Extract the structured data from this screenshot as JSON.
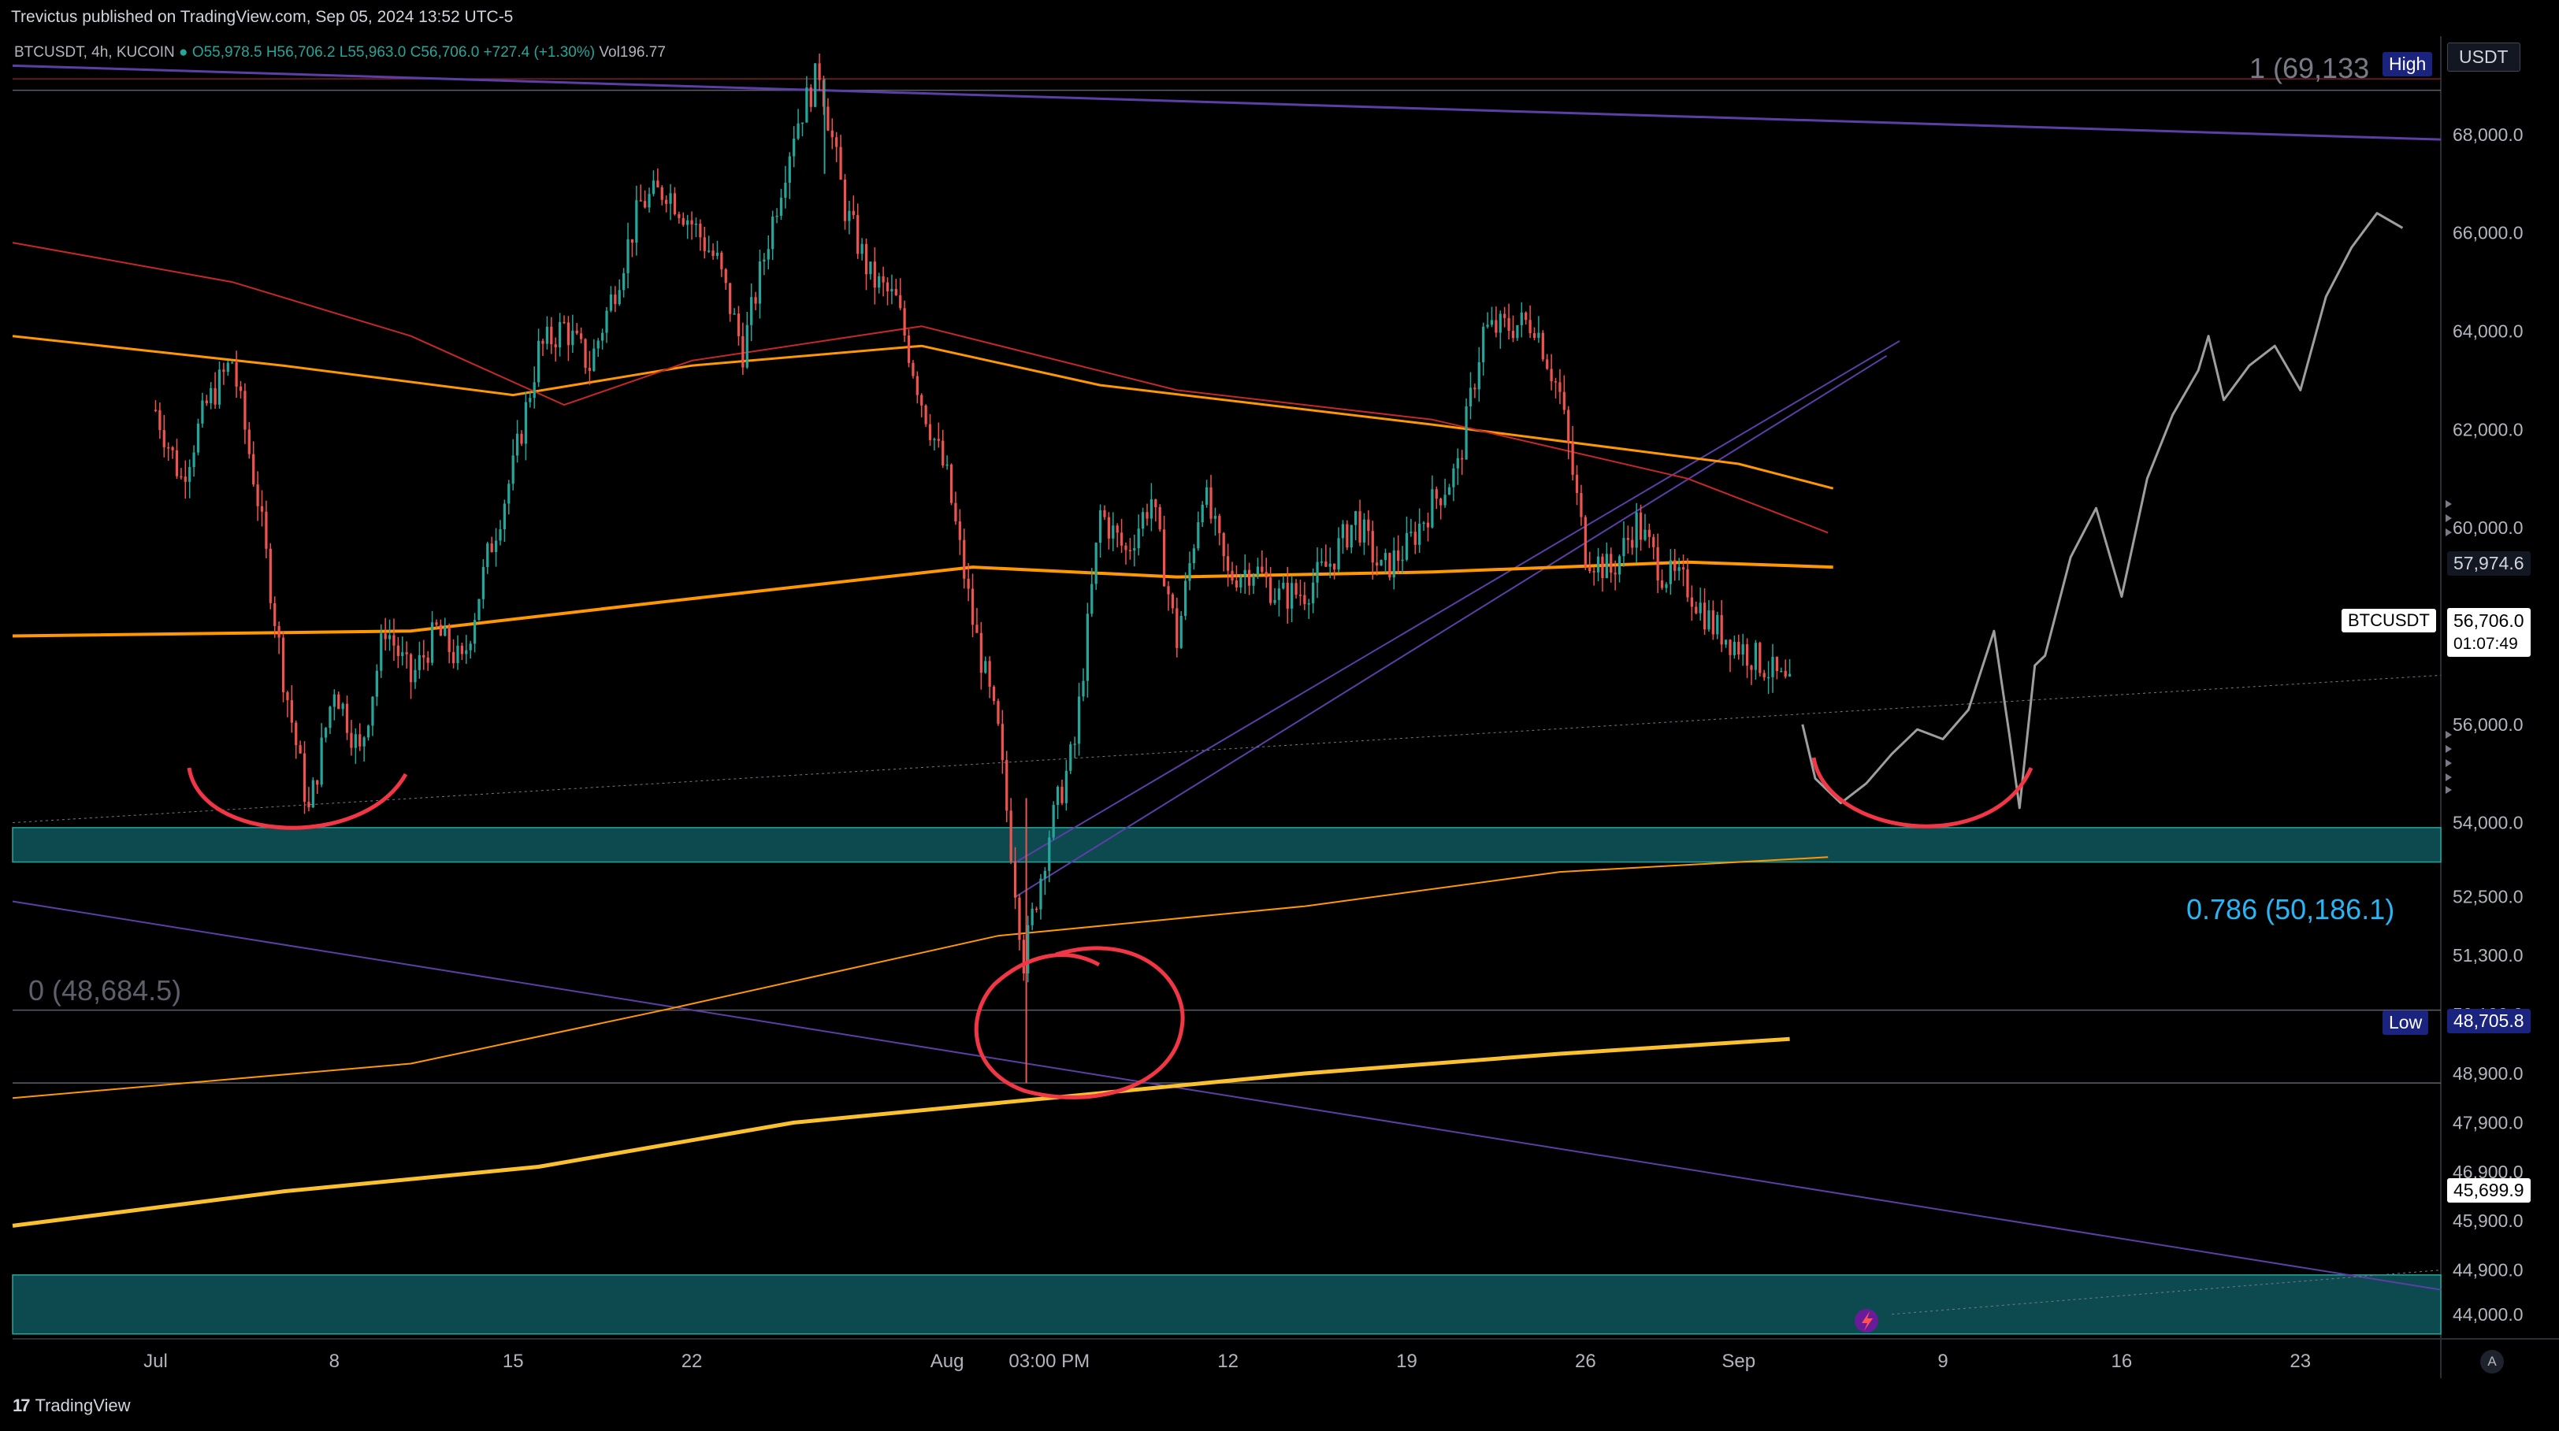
{
  "header": {
    "published_by": "Trevictus published on TradingView.com, Sep 05, 2024 13:52 UTC-5"
  },
  "legend": {
    "symbol": "BTCUSDT, 4h, KUCOIN",
    "ohlc": "O55,978.5 H56,706.2 L55,963.0 C56,706.0 +727.4 (+1.30%)",
    "volume": "Vol196.77"
  },
  "currency": "USDT",
  "footer": {
    "logo": "TradingView"
  },
  "auto_label": "A",
  "fib_labels": {
    "top": "1 (69,133",
    "mid": "0.786 (50,186.1)",
    "bottom": "0 (48,684.5)"
  },
  "badges": {
    "high": "High",
    "low": "Low",
    "low_value": "48,705.8",
    "symbol": "BTCUSDT",
    "price": "56,706.0",
    "countdown": "01:07:49",
    "level_1": "57,974.6",
    "level_2": "45,699.9"
  },
  "colors": {
    "background": "#000000",
    "up": "#26a69a",
    "down": "#ef5350",
    "zone": "#0d4a4f",
    "zone_border": "#26a69a",
    "trendline": "#5b3fa6",
    "ma_orange": "#ff9800",
    "ma_red": "#c62828",
    "ma_yellow": "#fbc02d",
    "annotation": "#f23645",
    "projection": "#9e9e9e",
    "fib_text": "#29b6f6"
  },
  "chart_data": {
    "type": "candlestick",
    "symbol": "BTCUSDT",
    "interval": "4h",
    "exchange": "KUCOIN",
    "ylim": [
      43500,
      70000
    ],
    "y_ticks": [
      44000,
      44900,
      45900,
      46900,
      47900,
      48900,
      50100,
      51300,
      52500,
      54000,
      56000,
      58000,
      60000,
      62000,
      64000,
      66000,
      68000
    ],
    "y_tick_labels": [
      "44,000.0",
      "44,900.0",
      "45,900.0",
      "46,900.0",
      "47,900.0",
      "48,900.0",
      "50,100.0",
      "51,300.0",
      "52,500.0",
      "54,000.0",
      "56,000.0",
      "58,000.0",
      "60,000.0",
      "62,000.0",
      "64,000.0",
      "66,000.0",
      "68,000.0"
    ],
    "x_ticks": [
      "Jul",
      "8",
      "15",
      "22",
      "Aug",
      "03:00 PM",
      "12",
      "19",
      "26",
      "Sep",
      "9",
      "16",
      "23"
    ],
    "x_tick_days": [
      0,
      7,
      14,
      21,
      31,
      35,
      42,
      49,
      56,
      62,
      70,
      77,
      84
    ],
    "x_range_days": [
      -5.6,
      89.5
    ],
    "close_path": [
      [
        0,
        62400
      ],
      [
        1,
        61000
      ],
      [
        2,
        62500
      ],
      [
        3,
        63400
      ],
      [
        4,
        60600
      ],
      [
        5,
        57000
      ],
      [
        6,
        54200
      ],
      [
        7,
        56800
      ],
      [
        8,
        55400
      ],
      [
        9,
        58000
      ],
      [
        10,
        56900
      ],
      [
        11,
        57900
      ],
      [
        12,
        57200
      ],
      [
        13,
        59400
      ],
      [
        14,
        61200
      ],
      [
        15,
        63600
      ],
      [
        16,
        64100
      ],
      [
        17,
        63300
      ],
      [
        18,
        64900
      ],
      [
        19,
        66600
      ],
      [
        20,
        66900
      ],
      [
        21,
        66200
      ],
      [
        22,
        65400
      ],
      [
        23,
        63600
      ],
      [
        24,
        65900
      ],
      [
        25,
        68100
      ],
      [
        26,
        69300
      ],
      [
        27,
        66500
      ],
      [
        28,
        65100
      ],
      [
        29,
        64600
      ],
      [
        30,
        62600
      ],
      [
        31,
        61000
      ],
      [
        32,
        58100
      ],
      [
        33,
        55800
      ],
      [
        34,
        51200
      ],
      [
        35,
        53800
      ],
      [
        36,
        55600
      ],
      [
        37,
        60300
      ],
      [
        38,
        59500
      ],
      [
        39,
        60600
      ],
      [
        40,
        57700
      ],
      [
        41,
        60800
      ],
      [
        42,
        59000
      ],
      [
        43,
        59200
      ],
      [
        44,
        58600
      ],
      [
        45,
        58700
      ],
      [
        46,
        59300
      ],
      [
        47,
        60200
      ],
      [
        48,
        59100
      ],
      [
        49,
        59600
      ],
      [
        50,
        60500
      ],
      [
        51,
        61200
      ],
      [
        52,
        64000
      ],
      [
        53,
        64100
      ],
      [
        54,
        64200
      ],
      [
        55,
        62700
      ],
      [
        56,
        59500
      ],
      [
        57,
        59100
      ],
      [
        58,
        60100
      ],
      [
        59,
        59100
      ],
      [
        60,
        58800
      ],
      [
        61,
        58000
      ],
      [
        62,
        57600
      ],
      [
        63,
        57200
      ],
      [
        64,
        56700
      ]
    ],
    "projection_path": [
      [
        64.5,
        56000
      ],
      [
        65,
        54900
      ],
      [
        66,
        54400
      ],
      [
        67,
        54800
      ],
      [
        68,
        55400
      ],
      [
        69,
        55900
      ],
      [
        70,
        55700
      ],
      [
        71,
        56300
      ],
      [
        72,
        57900
      ],
      [
        72.6,
        55800
      ],
      [
        73,
        54300
      ],
      [
        73.6,
        57200
      ],
      [
        74,
        57400
      ],
      [
        75,
        59400
      ],
      [
        76,
        60400
      ],
      [
        77,
        58600
      ],
      [
        78,
        61000
      ],
      [
        79,
        62300
      ],
      [
        80,
        63200
      ],
      [
        80.4,
        63900
      ],
      [
        81,
        62600
      ],
      [
        82,
        63300
      ],
      [
        83,
        63700
      ],
      [
        84,
        62800
      ],
      [
        85,
        64700
      ],
      [
        86,
        65700
      ],
      [
        87,
        66400
      ],
      [
        88,
        66100
      ]
    ],
    "moving_averages": [
      {
        "color": "#ff9800",
        "width": 3,
        "points": [
          [
            -5.6,
            63900
          ],
          [
            5,
            63300
          ],
          [
            14,
            62700
          ],
          [
            21,
            63300
          ],
          [
            30,
            63700
          ],
          [
            37,
            62900
          ],
          [
            50,
            62100
          ],
          [
            62,
            61300
          ],
          [
            65.7,
            60800
          ]
        ]
      },
      {
        "color": "#c62828",
        "width": 2,
        "points": [
          [
            -5.6,
            65800
          ],
          [
            3,
            65000
          ],
          [
            10,
            63900
          ],
          [
            16,
            62500
          ],
          [
            21,
            63400
          ],
          [
            30,
            64100
          ],
          [
            40,
            62800
          ],
          [
            50,
            62200
          ],
          [
            60,
            61000
          ],
          [
            65.5,
            59900
          ]
        ]
      },
      {
        "color": "#ff9800",
        "width": 4,
        "points": [
          [
            -5.6,
            57800
          ],
          [
            10,
            57900
          ],
          [
            20,
            58500
          ],
          [
            32,
            59200
          ],
          [
            40,
            59000
          ],
          [
            50,
            59100
          ],
          [
            60,
            59300
          ],
          [
            65.7,
            59200
          ]
        ]
      },
      {
        "color": "#ff9800",
        "width": 2,
        "points": [
          [
            -5.6,
            48400
          ],
          [
            10,
            49100
          ],
          [
            20,
            50200
          ],
          [
            33,
            51700
          ],
          [
            45,
            52300
          ],
          [
            55,
            53000
          ],
          [
            65.5,
            53300
          ]
        ]
      },
      {
        "color": "#fbc02d",
        "width": 5,
        "points": [
          [
            -5.6,
            45800
          ],
          [
            5,
            46500
          ],
          [
            15,
            47000
          ],
          [
            25,
            47900
          ],
          [
            35,
            48400
          ],
          [
            45,
            48900
          ],
          [
            55,
            49300
          ],
          [
            64,
            49600
          ]
        ]
      }
    ],
    "trendlines": [
      {
        "color": "#5b3fa6",
        "width": 3,
        "points": [
          [
            -5.6,
            69400
          ],
          [
            89.5,
            67900
          ]
        ]
      },
      {
        "color": "#5b3fa6",
        "width": 2,
        "points": [
          [
            -5.6,
            52400
          ],
          [
            89.5,
            44500
          ]
        ]
      },
      {
        "color": "#5b3fa6",
        "width": 2,
        "points": [
          [
            33.7,
            53200
          ],
          [
            68.3,
            63800
          ]
        ]
      },
      {
        "color": "#5b3fa6",
        "width": 2,
        "points": [
          [
            33.7,
            52500
          ],
          [
            67.8,
            63500
          ]
        ]
      },
      {
        "color": "#787b86",
        "width": 1,
        "dash": "3,4",
        "points": [
          [
            -5.6,
            54000
          ],
          [
            89.5,
            57000
          ]
        ]
      },
      {
        "color": "#787b86",
        "width": 1,
        "dash": "3,4",
        "points": [
          [
            68,
            44000
          ],
          [
            89.5,
            44900
          ]
        ]
      }
    ],
    "zones": [
      [
        53200,
        53900
      ],
      [
        43600,
        44800
      ]
    ],
    "horizontal_levels": [
      69133,
      68900,
      50186.1,
      48705.8
    ],
    "fibonacci": [
      {
        "level": "1",
        "price": 69133
      },
      {
        "level": "0.786",
        "price": 50186.1
      },
      {
        "level": "0",
        "price": 48684.5
      }
    ],
    "current_price": 56706.0,
    "high": 69133,
    "low": 48705.8
  }
}
